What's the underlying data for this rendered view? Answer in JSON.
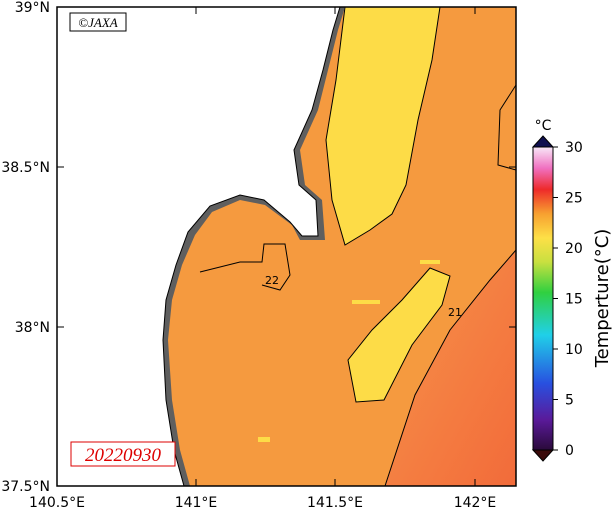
{
  "credit": "©JAXA",
  "date": "20220930",
  "map": {
    "lat_labels": [
      "39°N",
      "38.5°N",
      "38°N",
      "37.5°N"
    ],
    "lon_labels": [
      "140.5°E",
      "141°E",
      "141.5°E",
      "142°E"
    ],
    "contour_labels": [
      "22",
      "21"
    ]
  },
  "colorbar": {
    "unit": "°C",
    "title": "Temperture(°C)",
    "ticks": [
      0,
      5,
      10,
      15,
      20,
      25,
      30
    ]
  }
}
